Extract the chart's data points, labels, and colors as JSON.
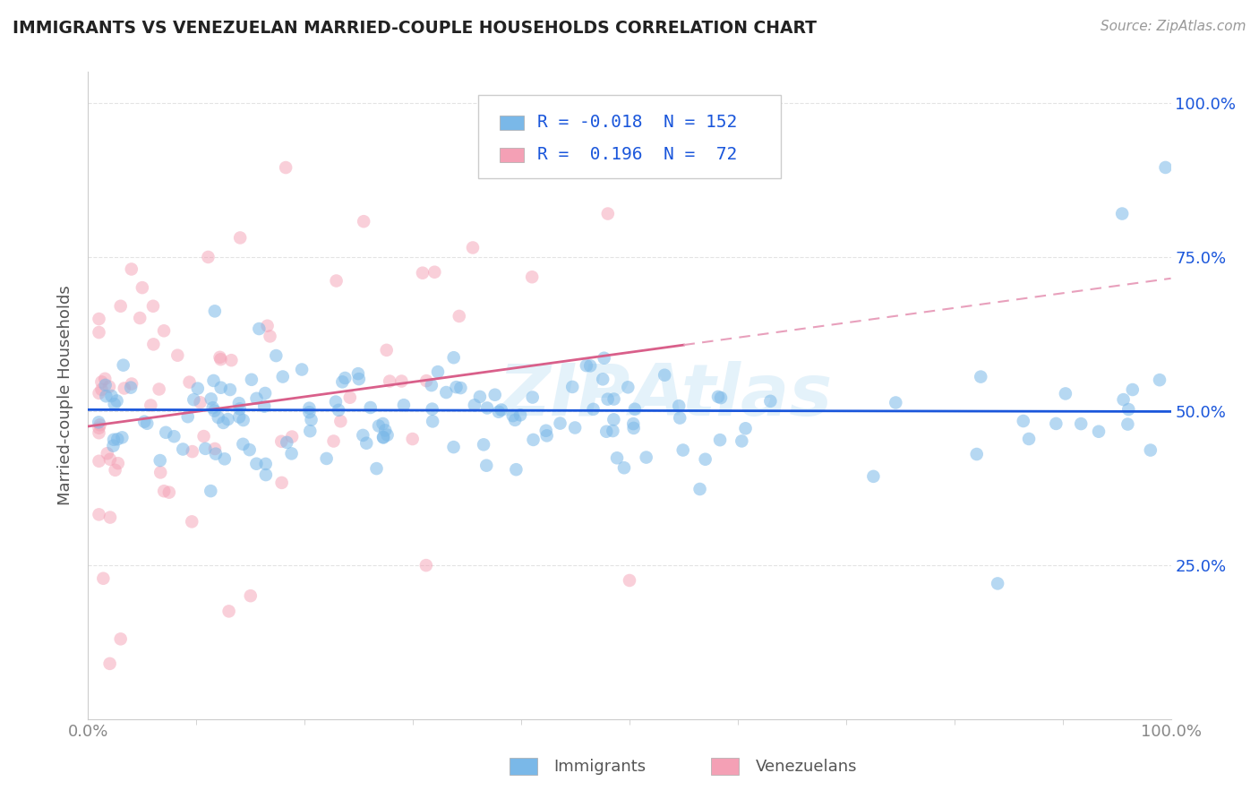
{
  "title": "IMMIGRANTS VS VENEZUELAN MARRIED-COUPLE HOUSEHOLDS CORRELATION CHART",
  "source": "Source: ZipAtlas.com",
  "ylabel": "Married-couple Households",
  "legend_label1": "Immigrants",
  "legend_label2": "Venezuelans",
  "r1": "-0.018",
  "n1": "152",
  "r2": "0.196",
  "n2": "72",
  "blue_color": "#7ab8e8",
  "pink_color": "#f4a0b5",
  "blue_line_color": "#1a56db",
  "pink_line_color": "#d95f8a",
  "pink_line_dash_color": "#e8a0bc",
  "title_color": "#222222",
  "source_color": "#999999",
  "r_n_color": "#1a56db",
  "axis_label_color": "#555555",
  "ytick_color": "#1a56db",
  "xtick_color": "#888888",
  "grid_color": "#e0e0e0",
  "background_color": "#ffffff",
  "blue_alpha": 0.55,
  "pink_alpha": 0.5,
  "dot_size": 110,
  "xlim": [
    0.0,
    1.0
  ],
  "ylim": [
    0.0,
    1.05
  ],
  "watermark": "ZIPAtlas"
}
